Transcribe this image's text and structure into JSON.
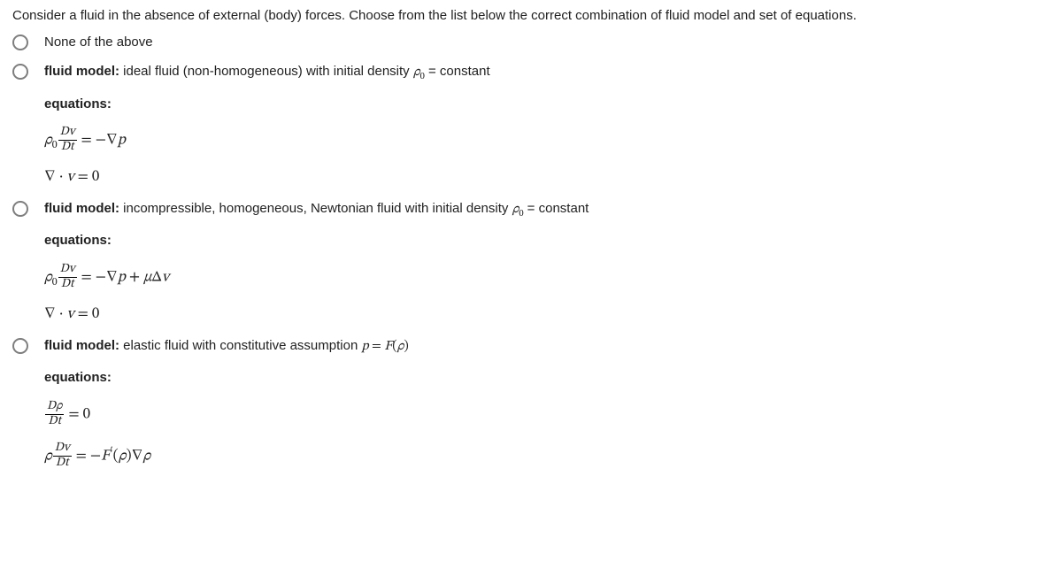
{
  "question": "Consider a fluid in the absence of external (body) forces. Choose from the list below the correct combination of fluid model and set of equations.",
  "labels": {
    "fluidModel": "fluid model:",
    "equations": "equations:",
    "constant": "constant"
  },
  "options": {
    "a": {
      "text": "None of the above"
    },
    "b": {
      "modelText": " ideal fluid (non-homogeneous) with initial density "
    },
    "c": {
      "modelText": " incompressible, homogeneous, Newtonian fluid with initial density "
    },
    "d": {
      "modelText": " elastic fluid with constitutive assumption "
    }
  },
  "style": {
    "textColor": "#212121",
    "radioBorder": "#7e7e7e",
    "background": "#ffffff",
    "bodyFontSize": 15,
    "mathFontSize": 17
  }
}
